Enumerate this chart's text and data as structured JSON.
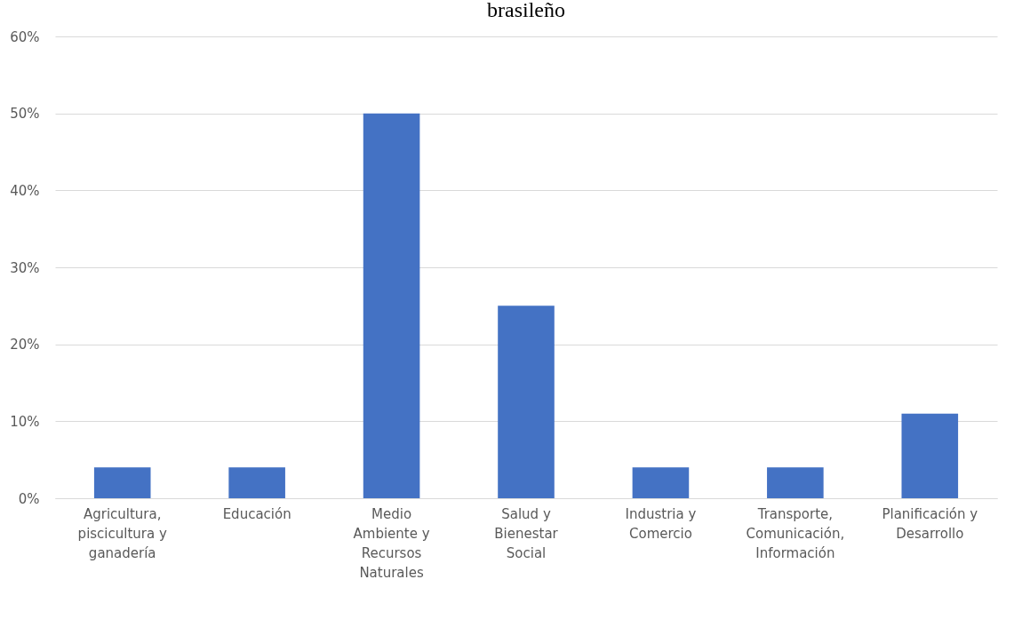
{
  "chart_data": {
    "type": "bar",
    "title": "brasileño",
    "categories": [
      "Agricultura,\npiscicultura y\nganadería",
      "Educación",
      "Medio\nAmbiente y\nRecursos\nNaturales",
      "Salud y\nBienestar\nSocial",
      "Industria y\nComercio",
      "Transporte,\nComunicación,\nInformación",
      "Planificación y\nDesarrollo"
    ],
    "values": [
      4,
      4,
      50,
      25,
      4,
      4,
      11
    ],
    "color": "#4472c4",
    "ylim": [
      0,
      60
    ],
    "yticks": [
      {
        "value": 0,
        "label": "0%"
      },
      {
        "value": 10,
        "label": "10%"
      },
      {
        "value": 20,
        "label": "20%"
      },
      {
        "value": 30,
        "label": "30%"
      },
      {
        "value": 40,
        "label": "40%"
      },
      {
        "value": 50,
        "label": "50%"
      },
      {
        "value": 60,
        "label": "60%"
      }
    ],
    "grid": true
  }
}
